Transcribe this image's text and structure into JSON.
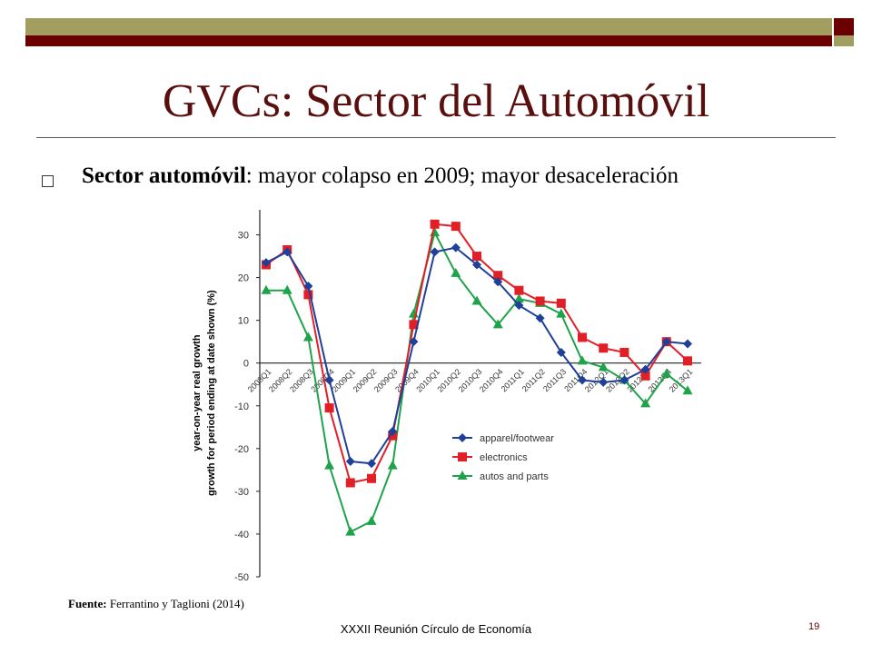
{
  "slide": {
    "title": "GVCs: Sector del Automóvil",
    "bullet_bold": "Sector automóvil",
    "bullet_rest": ": mayor colapso en 2009; mayor desaceleración",
    "source_label": "Fuente:",
    "source_text": " Ferrantino y Taglioni (2014)",
    "footer": "XXXII Reunión Círculo de Economía",
    "page_number": "19"
  },
  "colors": {
    "title": "#5a0f0f",
    "bar_olive": "#a29e5f",
    "bar_red": "#6b0000"
  },
  "chart_data": {
    "type": "line",
    "ylabel_line1": "year-on-year real growth",
    "ylabel_line2": "growth for period ending at date shown (%)",
    "ylim": [
      -50,
      35
    ],
    "yticks": [
      30,
      20,
      10,
      0,
      -10,
      -20,
      -30,
      -40,
      -50
    ],
    "categories": [
      "2008Q1",
      "2008Q2",
      "2008Q3",
      "2008Q4",
      "2009Q1",
      "2009Q2",
      "2009Q3",
      "2009Q4",
      "2010Q1",
      "2010Q2",
      "2010Q3",
      "2010Q4",
      "2011Q1",
      "2011Q2",
      "2011Q3",
      "2011Q4",
      "2012Q1",
      "2012Q2",
      "2012Q3",
      "2012Q4",
      "2013Q1"
    ],
    "legend_position": "bottom-right",
    "series": [
      {
        "name": "apparel/footwear",
        "color": "#1f3f99",
        "marker": "diamond",
        "values": [
          23.5,
          26,
          18,
          -4,
          -23,
          -23.5,
          -16,
          5,
          26,
          27,
          23,
          19,
          13.5,
          10.5,
          2.5,
          -4,
          -4.5,
          -4,
          -1.5,
          5,
          4.5
        ]
      },
      {
        "name": "electronics",
        "color": "#e11f26",
        "marker": "square",
        "values": [
          23,
          26.5,
          16,
          -10.5,
          -28,
          -27,
          -17,
          9,
          32.5,
          32,
          25,
          20.5,
          17,
          14.5,
          14,
          6,
          3.5,
          2.5,
          -3,
          5,
          0.5
        ]
      },
      {
        "name": "autos and parts",
        "color": "#1fa34a",
        "marker": "triangle",
        "values": [
          17,
          17,
          6,
          -24,
          -39.5,
          -37,
          -24,
          11.5,
          30.5,
          21,
          14.5,
          9,
          15,
          14,
          11.5,
          0.5,
          -1,
          -4,
          -9.5,
          -2.5,
          -6.5
        ]
      }
    ]
  }
}
